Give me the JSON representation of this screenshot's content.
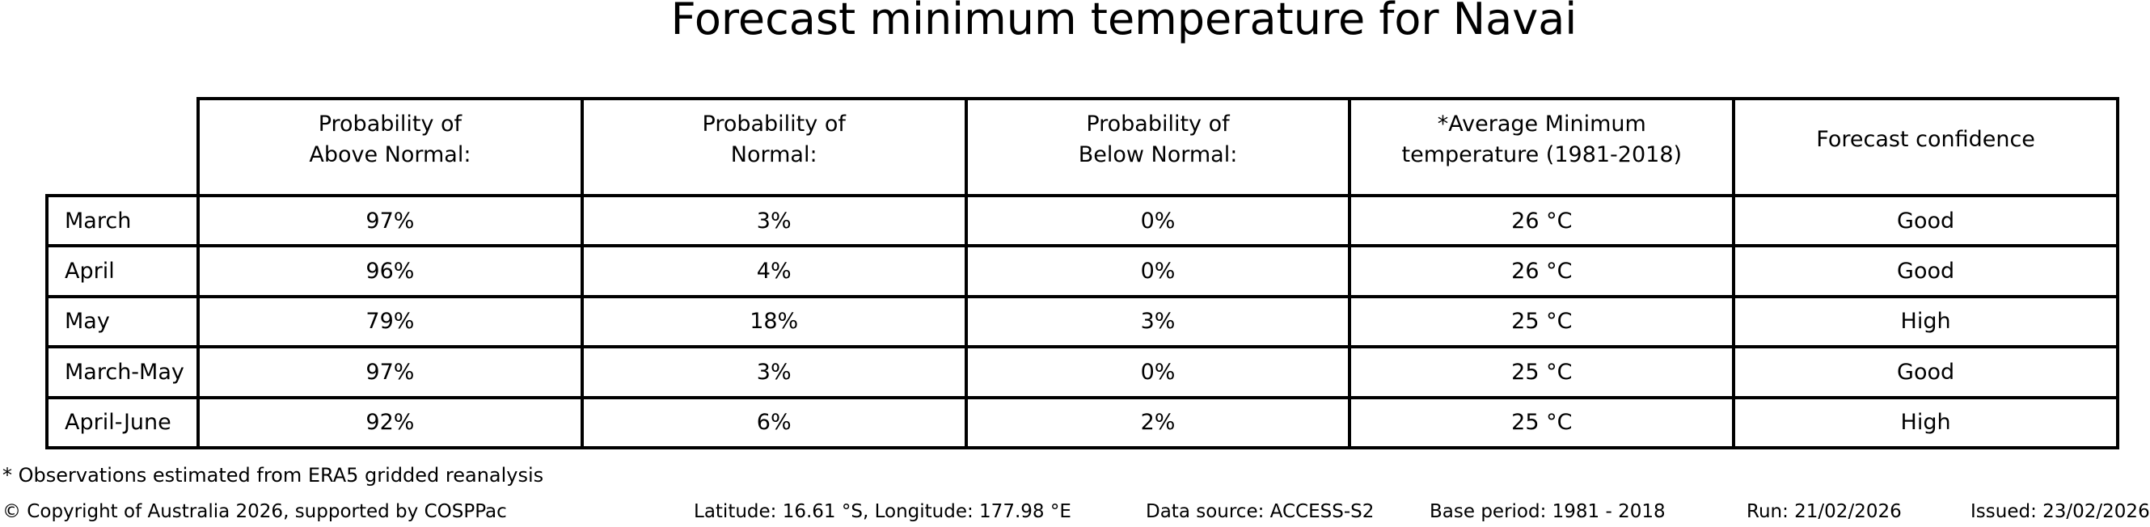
{
  "title": "Forecast minimum temperature for Navai",
  "table": {
    "headers": [
      "Probability of\nAbove Normal:",
      "Probability of\nNormal:",
      "Probability of\nBelow Normal:",
      "*Average Minimum\ntemperature (1981-2018)",
      "Forecast confidence"
    ]
  },
  "chart_data": {
    "type": "table",
    "title": "Forecast minimum temperature for Navai",
    "columns": [
      "Probability of Above Normal:",
      "Probability of Normal:",
      "Probability of Below Normal:",
      "*Average Minimum temperature (1981-2018)",
      "Forecast confidence"
    ],
    "row_labels": [
      "March",
      "April",
      "May",
      "March-May",
      "April-June"
    ],
    "rows": [
      [
        "97%",
        "3%",
        "0%",
        "26 °C",
        "Good"
      ],
      [
        "96%",
        "4%",
        "0%",
        "26 °C",
        "Good"
      ],
      [
        "79%",
        "18%",
        "3%",
        "25 °C",
        "High"
      ],
      [
        "97%",
        "3%",
        "0%",
        "25 °C",
        "Good"
      ],
      [
        "92%",
        "6%",
        "2%",
        "25 °C",
        "High"
      ]
    ],
    "footnote": "* Observations estimated from ERA5 gridded reanalysis"
  },
  "footnote": "* Observations estimated from ERA5 gridded reanalysis",
  "footer": {
    "copyright": "© Copyright of Australia 2026, supported by COSPPac",
    "location": "Latitude: 16.61 °S, Longitude: 177.98 °E",
    "data_source": "Data source: ACCESS-S2",
    "base_period": "Base period: 1981 - 2018",
    "run": "Run: 21/02/2026",
    "issued": "Issued: 23/02/2026"
  },
  "colors": {
    "background": "#ffffff",
    "text": "#000000",
    "table_rules": "#000000"
  }
}
